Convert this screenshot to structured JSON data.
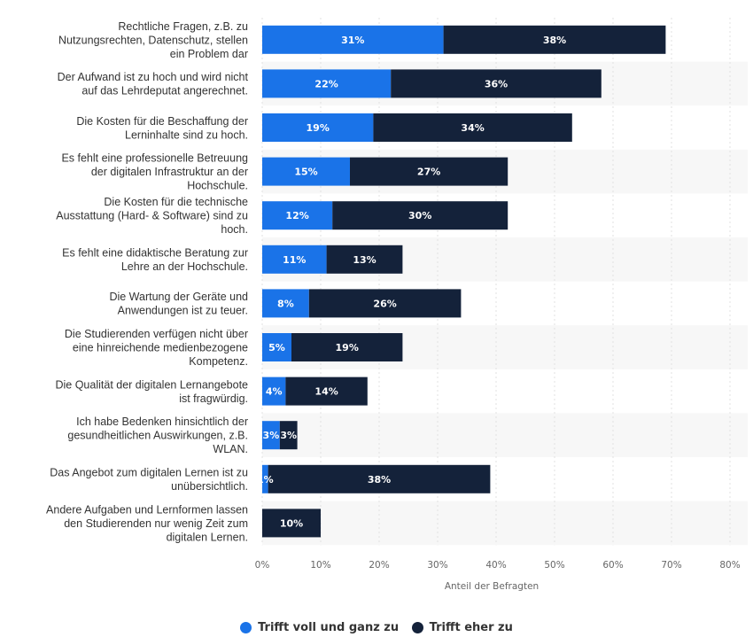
{
  "chart_data": {
    "type": "bar",
    "orientation": "horizontal",
    "stacked": true,
    "categories": [
      "Rechtliche Fragen, z.B. zu Nutzungsrechten, Datenschutz, stellen ein Problem dar",
      "Der Aufwand ist zu hoch und wird nicht auf das Lehrdeputat angerechnet.",
      "Die Kosten für die Beschaffung der Lerninhalte sind zu hoch.",
      "Es fehlt eine professionelle Betreuung der digitalen Infrastruktur an der Hochschule.",
      "Die Kosten für die technische Ausstattung (Hard- & Software) sind zu hoch.",
      "Es fehlt eine didaktische Beratung zur Lehre an der Hochschule.",
      "Die Wartung der Geräte und Anwendungen ist zu teuer.",
      "Die Studierenden verfügen nicht über eine hinreichende medienbezogene Kompetenz.",
      "Die Qualität der digitalen Lernangebote ist fragwürdig.",
      "Ich habe Bedenken hinsichtlich der gesundheitlichen Auswirkungen, z.B. WLAN.",
      "Das Angebot zum digitalen Lernen ist zu unübersichtlich.",
      "Andere Aufgaben und Lernformen lassen den Studierenden nur wenig Zeit zum digitalen Lernen."
    ],
    "category_lines": [
      [
        "Rechtliche Fragen, z.B. zu",
        "Nutzungsrechten, Datenschutz, stellen",
        "ein Problem dar"
      ],
      [
        "Der Aufwand ist zu hoch und wird nicht",
        "auf das Lehrdeputat angerechnet."
      ],
      [
        "Die Kosten für die Beschaffung der",
        "Lerninhalte sind zu hoch."
      ],
      [
        "Es fehlt eine professionelle Betreuung",
        "der digitalen Infrastruktur an der",
        "Hochschule."
      ],
      [
        "Die Kosten für die technische",
        "Ausstattung (Hard- & Software) sind zu",
        "hoch."
      ],
      [
        "Es fehlt eine didaktische Beratung zur",
        "Lehre an der Hochschule."
      ],
      [
        "Die Wartung der Geräte und",
        "Anwendungen ist zu teuer."
      ],
      [
        "Die Studierenden verfügen nicht über",
        "eine hinreichende medienbezogene",
        "Kompetenz."
      ],
      [
        "Die Qualität der digitalen Lernangebote",
        "ist fragwürdig."
      ],
      [
        "Ich habe Bedenken hinsichtlich der",
        "gesundheitlichen Auswirkungen, z.B.",
        "WLAN."
      ],
      [
        "Das Angebot zum digitalen Lernen ist zu",
        "unübersichtlich."
      ],
      [
        "Andere Aufgaben und Lernformen lassen",
        "den Studierenden nur wenig Zeit zum",
        "digitalen Lernen."
      ]
    ],
    "series": [
      {
        "name": "Trifft voll und ganz zu",
        "color": "#1a73e8",
        "values": [
          31,
          22,
          19,
          15,
          12,
          11,
          8,
          5,
          4,
          3,
          1,
          0
        ],
        "labels": [
          "31%",
          "22%",
          "19%",
          "15%",
          "12%",
          "11%",
          "8%",
          "5%",
          "4%",
          "3%",
          "1%",
          ""
        ]
      },
      {
        "name": "Trifft eher zu",
        "color": "#14223a",
        "values": [
          38,
          36,
          34,
          27,
          30,
          13,
          26,
          19,
          14,
          3,
          38,
          10
        ],
        "labels": [
          "38%",
          "36%",
          "34%",
          "27%",
          "30%",
          "13%",
          "26%",
          "19%",
          "14%",
          "3%",
          "38%",
          "10%"
        ]
      }
    ],
    "xlabel": "Anteil der Befragten",
    "xlim": [
      0,
      80
    ],
    "xticks": [
      0,
      10,
      20,
      30,
      40,
      50,
      60,
      70,
      80
    ],
    "xtick_labels": [
      "0%",
      "10%",
      "20%",
      "30%",
      "40%",
      "50%",
      "60%",
      "70%",
      "80%"
    ],
    "grid": true,
    "legend_position": "bottom"
  }
}
